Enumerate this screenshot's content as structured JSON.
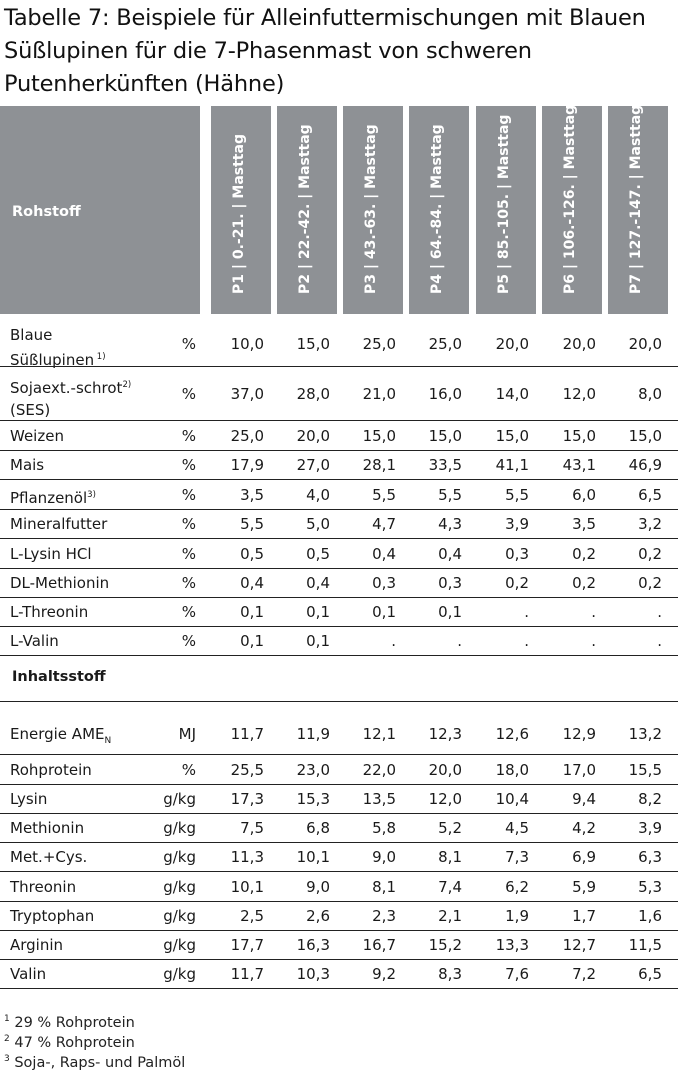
{
  "title": "Tabelle 7: Beispiele für Alleinfuttermischungen mit Blauen Süßlupinen für die 7-Phasenmast von schweren Putenherkünften (Hähne)",
  "header": {
    "rohstoff": "Rohstoff",
    "phases": [
      "P1 | 0.-21. | Masttag",
      "P2 | 22.-42. | Masttag",
      "P3 | 43.-63. | Masttag",
      "P4 | 64.-84. | Masttag",
      "P5 | 85.-105. | Masttag",
      "P6 | 106.-126. | Masttag",
      "P7 | 127.-147. | Masttag"
    ]
  },
  "rohstoffe": [
    {
      "name": "Blaue",
      "name2": "Süßlupinen",
      "sup": "1)",
      "unit": "%",
      "values": [
        "10,0",
        "15,0",
        "25,0",
        "25,0",
        "20,0",
        "20,0",
        "20,0"
      ]
    },
    {
      "name": "Sojaext.-schrot",
      "sup": "2)",
      "name2": "(SES)",
      "unit": "%",
      "values": [
        "37,0",
        "28,0",
        "21,0",
        "16,0",
        "14,0",
        "12,0",
        "8,0"
      ]
    },
    {
      "name": "Weizen",
      "unit": "%",
      "values": [
        "25,0",
        "20,0",
        "15,0",
        "15,0",
        "15,0",
        "15,0",
        "15,0"
      ]
    },
    {
      "name": "Mais",
      "unit": "%",
      "values": [
        "17,9",
        "27,0",
        "28,1",
        "33,5",
        "41,1",
        "43,1",
        "46,9"
      ]
    },
    {
      "name": "Pflanzenöl",
      "sup": "3)",
      "unit": "%",
      "values": [
        "3,5",
        "4,0",
        "5,5",
        "5,5",
        "5,5",
        "6,0",
        "6,5"
      ]
    },
    {
      "name": "Mineralfutter",
      "unit": "%",
      "values": [
        "5,5",
        "5,0",
        "4,7",
        "4,3",
        "3,9",
        "3,5",
        "3,2"
      ]
    },
    {
      "name": "L-Lysin HCl",
      "unit": "%",
      "values": [
        "0,5",
        "0,5",
        "0,4",
        "0,4",
        "0,3",
        "0,2",
        "0,2"
      ]
    },
    {
      "name": "DL-Methionin",
      "unit": "%",
      "values": [
        "0,4",
        "0,4",
        "0,3",
        "0,3",
        "0,2",
        "0,2",
        "0,2"
      ]
    },
    {
      "name": "L-Threonin",
      "unit": "%",
      "values": [
        "0,1",
        "0,1",
        "0,1",
        "0,1",
        ".",
        ".",
        "."
      ]
    },
    {
      "name": "L-Valin",
      "unit": "%",
      "values": [
        "0,1",
        "0,1",
        ".",
        ".",
        ".",
        ".",
        "."
      ]
    }
  ],
  "inhalt_label": "Inhaltsstoff",
  "inhaltsstoffe": [
    {
      "name": "Energie AME",
      "sub": "N",
      "unit": "MJ",
      "values": [
        "11,7",
        "11,9",
        "12,1",
        "12,3",
        "12,6",
        "12,9",
        "13,2"
      ]
    },
    {
      "name": "Rohprotein",
      "unit": "%",
      "values": [
        "25,5",
        "23,0",
        "22,0",
        "20,0",
        "18,0",
        "17,0",
        "15,5"
      ]
    },
    {
      "name": "Lysin",
      "unit": "g/kg",
      "values": [
        "17,3",
        "15,3",
        "13,5",
        "12,0",
        "10,4",
        "9,4",
        "8,2"
      ]
    },
    {
      "name": "Methionin",
      "unit": "g/kg",
      "values": [
        "7,5",
        "6,8",
        "5,8",
        "5,2",
        "4,5",
        "4,2",
        "3,9"
      ]
    },
    {
      "name": "Met.+Cys.",
      "unit": "g/kg",
      "values": [
        "11,3",
        "10,1",
        "9,0",
        "8,1",
        "7,3",
        "6,9",
        "6,3"
      ]
    },
    {
      "name": "Threonin",
      "unit": "g/kg",
      "values": [
        "10,1",
        "9,0",
        "8,1",
        "7,4",
        "6,2",
        "5,9",
        "5,3"
      ]
    },
    {
      "name": "Tryptophan",
      "unit": "g/kg",
      "values": [
        "2,5",
        "2,6",
        "2,3",
        "2,1",
        "1,9",
        "1,7",
        "1,6"
      ]
    },
    {
      "name": "Arginin",
      "unit": "g/kg",
      "values": [
        "17,7",
        "16,3",
        "16,7",
        "15,2",
        "13,3",
        "12,7",
        "11,5"
      ]
    },
    {
      "name": "Valin",
      "unit": "g/kg",
      "values": [
        "11,7",
        "10,3",
        "9,2",
        "8,3",
        "7,6",
        "7,2",
        "6,5"
      ]
    }
  ],
  "footnotes": [
    {
      "num": "1",
      "text": "29 % Rohprotein"
    },
    {
      "num": "2",
      "text": "47 % Rohprotein"
    },
    {
      "num": "3",
      "text": "Soja-, Raps- und Palmöl"
    }
  ]
}
